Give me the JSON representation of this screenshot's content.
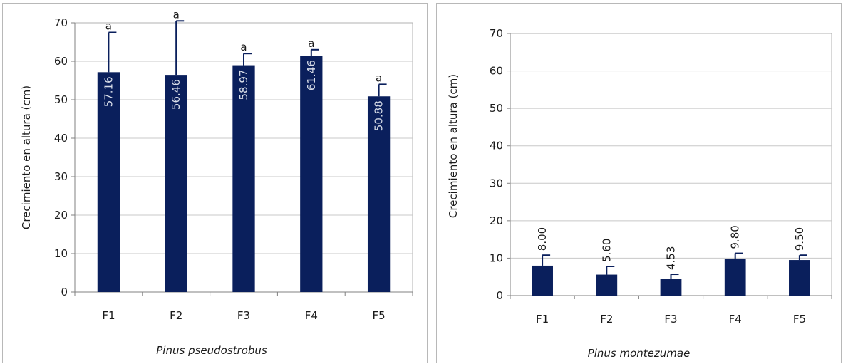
{
  "chart_data": [
    {
      "type": "bar",
      "categories": [
        "F1",
        "F2",
        "F3",
        "F4",
        "F5"
      ],
      "values": [
        57.16,
        56.46,
        58.97,
        61.46,
        50.88
      ],
      "value_labels": [
        "57.16",
        "56.46",
        "58.97",
        "61.46",
        "50.88"
      ],
      "error_upper": [
        67.5,
        70.5,
        62.0,
        63.0,
        54.0
      ],
      "significance": [
        "a",
        "a",
        "a",
        "a",
        "a"
      ],
      "title": "",
      "xlabel": "Pinus pseudostrobus",
      "ylabel": "Crecimiento en altura  (cm)",
      "ylim": [
        0,
        70
      ],
      "yticks": [
        0,
        10,
        20,
        30,
        40,
        50,
        60,
        70
      ],
      "grid": true,
      "bar_color": "#0a1f5c",
      "value_label_color": "#d8dde8",
      "value_label_position": "inside-top-rotated"
    },
    {
      "type": "bar",
      "categories": [
        "F1",
        "F2",
        "F3",
        "F4",
        "F5"
      ],
      "values": [
        8.0,
        5.6,
        4.53,
        9.8,
        9.5
      ],
      "value_labels": [
        "8.00",
        "5.60",
        "4.53",
        "9.80",
        "9.50"
      ],
      "error_upper": [
        10.8,
        7.8,
        5.7,
        11.3,
        10.8
      ],
      "title": "",
      "xlabel": "Pinus montezumae",
      "ylabel": "Crecimiento en altura  (cm)",
      "ylim": [
        0,
        70
      ],
      "yticks": [
        0,
        10,
        20,
        30,
        40,
        50,
        60,
        70
      ],
      "grid": true,
      "bar_color": "#0a1f5c",
      "value_label_color": "#1a1a1a",
      "value_label_position": "above-rotated"
    }
  ]
}
